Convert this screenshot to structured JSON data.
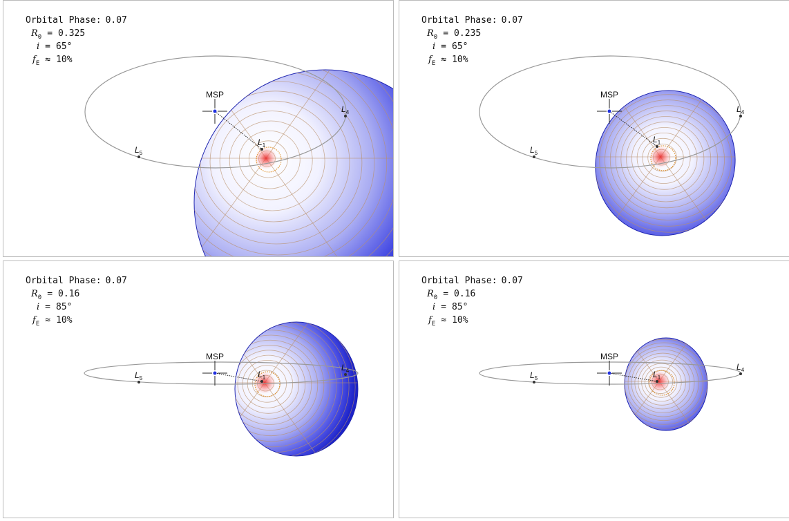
{
  "panels": [
    {
      "phase_label": "Orbital Phase:",
      "phase": "0.07",
      "r_symbol": "R",
      "r_sub": "0",
      "r_rel": "=",
      "r_value": "0.325",
      "i_symbol": "i",
      "i_rel": "=",
      "i_value": "65°",
      "f_symbol": "f",
      "f_sub": "E",
      "f_rel": "≈",
      "f_value": "10%",
      "msp": "MSP",
      "l1": [
        "L",
        "1"
      ],
      "l4": [
        "L",
        "4"
      ],
      "l5": [
        "L",
        "5"
      ]
    },
    {
      "phase_label": "Orbital Phase:",
      "phase": "0.07",
      "r_symbol": "R",
      "r_sub": "0",
      "r_rel": "=",
      "r_value": "0.235",
      "i_symbol": "i",
      "i_rel": "=",
      "i_value": "65°",
      "f_symbol": "f",
      "f_sub": "E",
      "f_rel": "≈",
      "f_value": "10%",
      "msp": "MSP",
      "l1": [
        "L",
        "1"
      ],
      "l4": [
        "L",
        "4"
      ],
      "l5": [
        "L",
        "5"
      ]
    },
    {
      "phase_label": "Orbital Phase:",
      "phase": "0.07",
      "r_symbol": "R",
      "r_sub": "0",
      "r_rel": "=",
      "r_value": "0.16",
      "i_symbol": "i",
      "i_rel": "=",
      "i_value": "85°",
      "f_symbol": "f",
      "f_sub": "E",
      "f_rel": "≈",
      "f_value": "10%",
      "msp": "MSP",
      "l1": [
        "L",
        "1"
      ],
      "l4": [
        "L",
        "4"
      ],
      "l5": [
        "L",
        "5"
      ]
    },
    {
      "phase_label": "Orbital Phase:",
      "phase": "0.07",
      "r_symbol": "R",
      "r_sub": "0",
      "r_rel": "=",
      "r_value": "0.16",
      "i_symbol": "i",
      "i_rel": "=",
      "i_value": "85°",
      "f_symbol": "f",
      "f_sub": "E",
      "f_rel": "≈",
      "f_value": "10%",
      "msp": "MSP",
      "l1": [
        "L",
        "1"
      ],
      "l4": [
        "L",
        "4"
      ],
      "l5": [
        "L",
        "5"
      ]
    }
  ]
}
